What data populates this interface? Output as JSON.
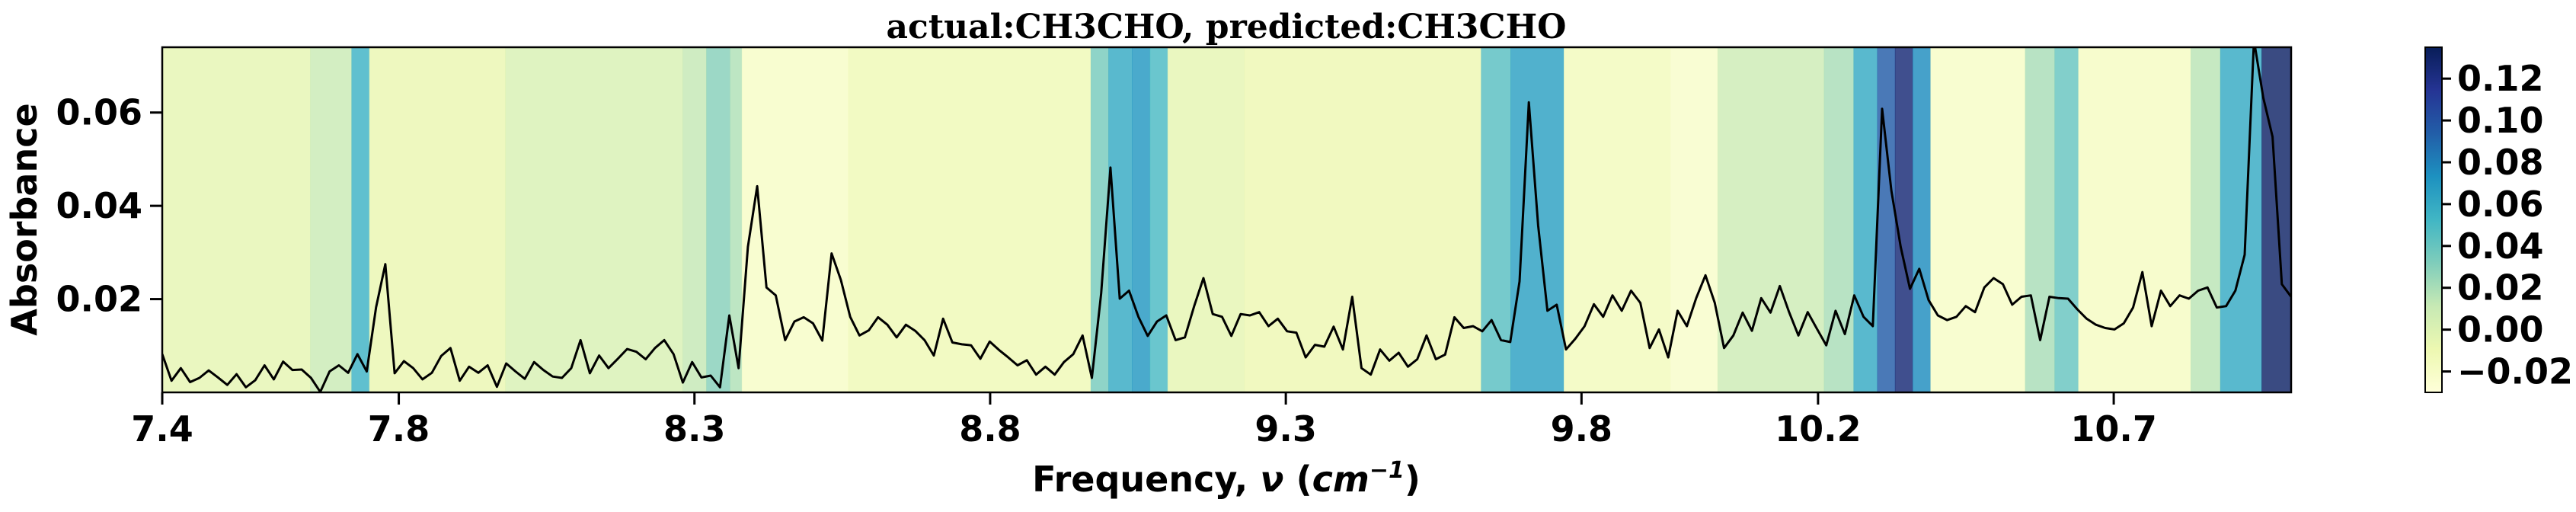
{
  "chart_data": {
    "type": "line",
    "title": "actual:CH3CHO, predicted:CH3CHO",
    "xlabel": "Frequency, ν (cm⁻¹)",
    "xlabel_parts": {
      "prefix": "Frequency, ",
      "nu": "ν",
      "open_paren": " (",
      "cm": "cm",
      "exp": "−1",
      "close_paren": ")"
    },
    "ylabel": "Absorbance",
    "xlim": [
      7.4,
      11.0
    ],
    "ylim": [
      0.0,
      0.074
    ],
    "xticks": [
      7.4,
      7.8,
      8.3,
      8.8,
      9.3,
      9.8,
      10.2,
      10.7
    ],
    "xtick_labels": [
      "7.4",
      "7.8",
      "8.3",
      "8.8",
      "9.3",
      "9.8",
      "10.2",
      "10.7"
    ],
    "yticks": [
      0.02,
      0.04,
      0.06
    ],
    "ytick_labels": [
      "0.02",
      "0.04",
      "0.06"
    ],
    "series": [
      {
        "color": "#000000",
        "x_start": 7.4,
        "x_end": 11.0,
        "values": [
          0.0082,
          0.0025,
          0.0052,
          0.0022,
          0.0031,
          0.0047,
          0.0032,
          0.0016,
          0.0039,
          0.0011,
          0.0026,
          0.0058,
          0.0028,
          0.0066,
          0.0048,
          0.0049,
          0.0031,
          0.0001,
          0.0045,
          0.0058,
          0.0042,
          0.0082,
          0.0045,
          0.0182,
          0.0275,
          0.0041,
          0.0067,
          0.0052,
          0.0028,
          0.0042,
          0.0078,
          0.0095,
          0.0025,
          0.0055,
          0.0042,
          0.0058,
          0.0012,
          0.0062,
          0.0045,
          0.0029,
          0.0065,
          0.0048,
          0.0034,
          0.0031,
          0.0052,
          0.0112,
          0.0041,
          0.0079,
          0.0052,
          0.0072,
          0.0093,
          0.0087,
          0.0071,
          0.0095,
          0.0112,
          0.0082,
          0.0021,
          0.0065,
          0.0032,
          0.0036,
          0.0011,
          0.0165,
          0.0052,
          0.0312,
          0.0442,
          0.0225,
          0.0208,
          0.0112,
          0.0152,
          0.0161,
          0.0148,
          0.0111,
          0.0298,
          0.0241,
          0.0162,
          0.0122,
          0.0133,
          0.0161,
          0.0145,
          0.0118,
          0.0145,
          0.0132,
          0.0112,
          0.0079,
          0.0158,
          0.0107,
          0.0103,
          0.0101,
          0.0072,
          0.0109,
          0.0091,
          0.0075,
          0.0058,
          0.0069,
          0.0038,
          0.0055,
          0.0038,
          0.0065,
          0.0082,
          0.0122,
          0.0031,
          0.0212,
          0.0482,
          0.0201,
          0.0218,
          0.0162,
          0.0121,
          0.0152,
          0.0165,
          0.0112,
          0.0118,
          0.0185,
          0.0245,
          0.0168,
          0.0162,
          0.0121,
          0.0168,
          0.0165,
          0.0172,
          0.0142,
          0.0158,
          0.0131,
          0.0128,
          0.0075,
          0.0102,
          0.0098,
          0.0141,
          0.0092,
          0.0205,
          0.0052,
          0.0038,
          0.0092,
          0.0068,
          0.0085,
          0.0055,
          0.0071,
          0.0122,
          0.0071,
          0.0081,
          0.0161,
          0.0138,
          0.0142,
          0.0131,
          0.0155,
          0.0112,
          0.0108,
          0.0238,
          0.0622,
          0.0358,
          0.0175,
          0.0188,
          0.0092,
          0.0115,
          0.0142,
          0.0189,
          0.0162,
          0.0208,
          0.0175,
          0.0218,
          0.0192,
          0.0095,
          0.0135,
          0.0075,
          0.0175,
          0.0142,
          0.0202,
          0.0251,
          0.0192,
          0.0095,
          0.0122,
          0.0171,
          0.0132,
          0.0202,
          0.0171,
          0.0228,
          0.0172,
          0.0122,
          0.0172,
          0.0136,
          0.0101,
          0.0175,
          0.0125,
          0.0208,
          0.0162,
          0.0142,
          0.0608,
          0.0432,
          0.0312,
          0.0222,
          0.0265,
          0.0198,
          0.0165,
          0.0155,
          0.0162,
          0.0185,
          0.0172,
          0.0225,
          0.0245,
          0.0232,
          0.0188,
          0.0205,
          0.0208,
          0.0112,
          0.0205,
          0.0202,
          0.0201,
          0.0178,
          0.0158,
          0.0145,
          0.0138,
          0.0135,
          0.0148,
          0.0182,
          0.0258,
          0.0142,
          0.0218,
          0.0185,
          0.0208,
          0.0201,
          0.0218,
          0.0225,
          0.0182,
          0.0185,
          0.0218,
          0.0295,
          0.0755,
          0.0632,
          0.0548,
          0.0232,
          0.0205
        ]
      }
    ],
    "colorbar": {
      "colormap": "YlGnBu",
      "range": [
        -0.03,
        0.135
      ],
      "ticks": [
        -0.02,
        0.0,
        0.02,
        0.04,
        0.06,
        0.08,
        0.1,
        0.12
      ],
      "tick_labels": [
        "−0.02",
        "0.00",
        "0.02",
        "0.04",
        "0.06",
        "0.08",
        "0.10",
        "0.12"
      ]
    },
    "heatmap_background": {
      "description_units": "frequency (cm^-1) bands with importance values mapped to colorbar",
      "bands": [
        {
          "from": 7.4,
          "to": 7.65,
          "value": -0.005
        },
        {
          "from": 7.65,
          "to": 7.72,
          "value": 0.01
        },
        {
          "from": 7.72,
          "to": 7.75,
          "value": 0.055
        },
        {
          "from": 7.75,
          "to": 7.98,
          "value": -0.008
        },
        {
          "from": 7.98,
          "to": 8.28,
          "value": 0.002
        },
        {
          "from": 8.28,
          "to": 8.32,
          "value": 0.012
        },
        {
          "from": 8.32,
          "to": 8.36,
          "value": 0.03
        },
        {
          "from": 8.36,
          "to": 8.38,
          "value": 0.018
        },
        {
          "from": 8.38,
          "to": 8.56,
          "value": -0.02
        },
        {
          "from": 8.56,
          "to": 8.97,
          "value": -0.012
        },
        {
          "from": 8.97,
          "to": 9.0,
          "value": 0.035
        },
        {
          "from": 9.0,
          "to": 9.04,
          "value": 0.06
        },
        {
          "from": 9.04,
          "to": 9.07,
          "value": 0.07
        },
        {
          "from": 9.07,
          "to": 9.1,
          "value": 0.05
        },
        {
          "from": 9.1,
          "to": 9.23,
          "value": -0.005
        },
        {
          "from": 9.23,
          "to": 9.63,
          "value": -0.01
        },
        {
          "from": 9.63,
          "to": 9.68,
          "value": 0.045
        },
        {
          "from": 9.68,
          "to": 9.77,
          "value": 0.065
        },
        {
          "from": 9.77,
          "to": 9.95,
          "value": -0.015
        },
        {
          "from": 9.95,
          "to": 10.03,
          "value": -0.022
        },
        {
          "from": 10.03,
          "to": 10.21,
          "value": 0.008
        },
        {
          "from": 10.21,
          "to": 10.26,
          "value": 0.02
        },
        {
          "from": 10.26,
          "to": 10.3,
          "value": 0.06
        },
        {
          "from": 10.3,
          "to": 10.33,
          "value": 0.095
        },
        {
          "from": 10.33,
          "to": 10.36,
          "value": 0.125
        },
        {
          "from": 10.36,
          "to": 10.39,
          "value": 0.075
        },
        {
          "from": 10.39,
          "to": 10.55,
          "value": -0.02
        },
        {
          "from": 10.55,
          "to": 10.6,
          "value": 0.02
        },
        {
          "from": 10.6,
          "to": 10.64,
          "value": 0.04
        },
        {
          "from": 10.64,
          "to": 10.83,
          "value": -0.018
        },
        {
          "from": 10.83,
          "to": 10.88,
          "value": 0.015
        },
        {
          "from": 10.88,
          "to": 10.95,
          "value": 0.06
        },
        {
          "from": 10.95,
          "to": 11.0,
          "value": 0.13
        }
      ]
    }
  }
}
